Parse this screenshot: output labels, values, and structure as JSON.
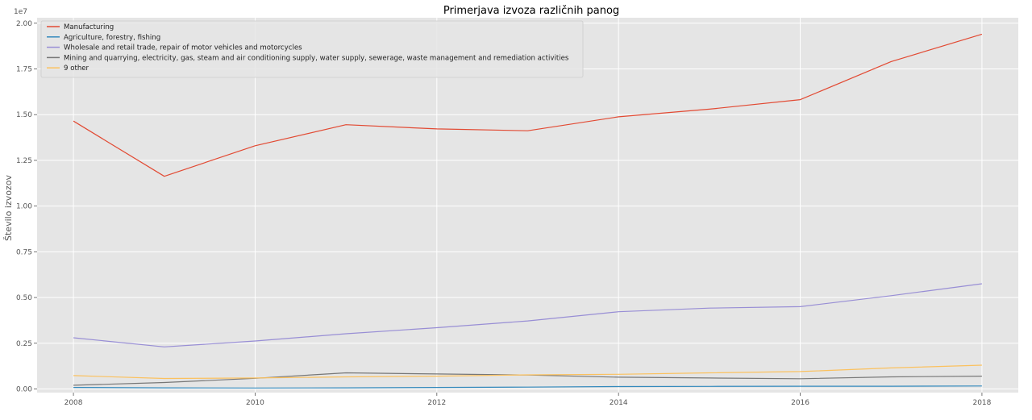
{
  "chart_data": {
    "type": "line",
    "title": "Primerjava izvoza različnih panog",
    "xlabel": "",
    "ylabel": "Število izvozov",
    "y_scale_label": "1e7",
    "x": [
      2008,
      2009,
      2010,
      2011,
      2012,
      2013,
      2014,
      2015,
      2016,
      2017,
      2018
    ],
    "xticks": [
      2008,
      2010,
      2012,
      2014,
      2016,
      2018
    ],
    "xlim": [
      2007.6,
      2018.4
    ],
    "yticks": [
      0.0,
      0.25,
      0.5,
      0.75,
      1.0,
      1.25,
      1.5,
      1.75,
      2.0
    ],
    "ytick_labels": [
      "0.00",
      "0.25",
      "0.50",
      "0.75",
      "1.00",
      "1.25",
      "1.50",
      "1.75",
      "2.00"
    ],
    "ylim": [
      -0.02,
      2.03
    ],
    "grid": true,
    "legend_position": "top-left",
    "series": [
      {
        "name": "Manufacturing",
        "color": "#E24A33",
        "values": [
          1.465,
          1.163,
          1.33,
          1.445,
          1.422,
          1.412,
          1.488,
          1.53,
          1.582,
          1.79,
          1.94
        ]
      },
      {
        "name": "Agriculture, forestry, fishing",
        "color": "#348ABD",
        "values": [
          0.008,
          0.006,
          0.005,
          0.006,
          0.008,
          0.01,
          0.013,
          0.014,
          0.015,
          0.015,
          0.016
        ]
      },
      {
        "name": "Wholesale and retail trade, repair of motor vehicles and motorcycles",
        "color": "#988ED5",
        "values": [
          0.28,
          0.23,
          0.262,
          0.302,
          0.335,
          0.372,
          0.422,
          0.442,
          0.45,
          0.51,
          0.575
        ]
      },
      {
        "name": "Mining and quarrying, electricity, gas, steam and air conditioning supply, water supply, sewerage, waste management and remediation activities",
        "color": "#777777",
        "values": [
          0.02,
          0.035,
          0.058,
          0.088,
          0.082,
          0.076,
          0.064,
          0.06,
          0.056,
          0.066,
          0.07
        ]
      },
      {
        "name": "9 other",
        "color": "#FBC15E",
        "values": [
          0.073,
          0.057,
          0.06,
          0.066,
          0.07,
          0.077,
          0.08,
          0.088,
          0.095,
          0.115,
          0.13
        ]
      }
    ]
  }
}
